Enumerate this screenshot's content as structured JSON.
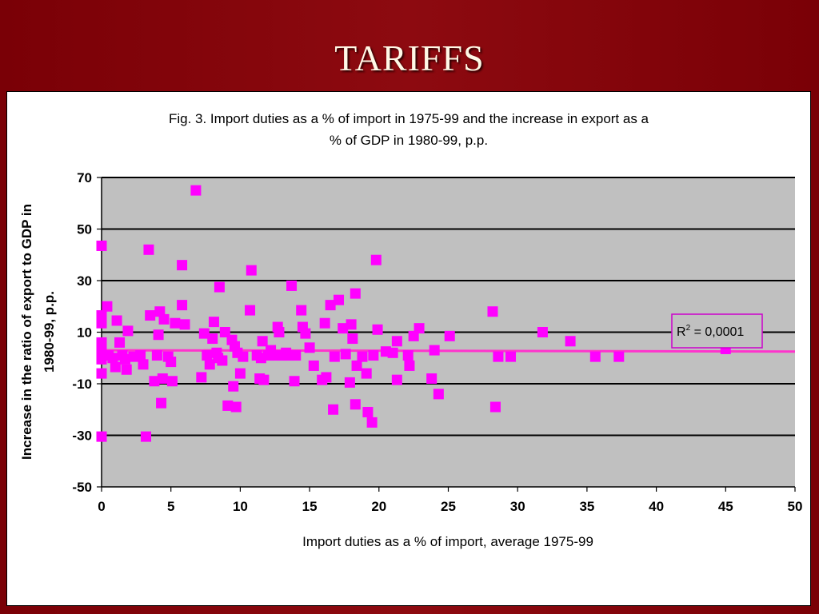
{
  "slide": {
    "title": "TARIFFS"
  },
  "chart_data": {
    "type": "scatter",
    "title_lines": [
      "Fig. 3. Import duties as a % of import in 1975-99 and the increase in export as a",
      "% of GDP in 1980-99, p.p."
    ],
    "xlabel": "Import duties as a  % of import, average 1975-99",
    "ylabel_lines": [
      "Increase in the ratio of export to GDP in",
      "1980-99, p.p."
    ],
    "xlim": [
      0,
      50
    ],
    "ylim": [
      -50,
      70
    ],
    "x_ticks": [
      0,
      5,
      10,
      15,
      20,
      25,
      30,
      35,
      40,
      45,
      50
    ],
    "y_ticks": [
      70,
      50,
      30,
      10,
      -10,
      -30,
      -50
    ],
    "grid": true,
    "plot_background": "#c0c0c0",
    "marker_color": "#ff00ff",
    "trendline": {
      "type": "linear",
      "x": [
        0,
        50
      ],
      "y": [
        3.0,
        2.5
      ],
      "color": "#ff33cc"
    },
    "annotation": {
      "text_main": "R",
      "text_sup": "2",
      "text_rest": " = 0,0001",
      "border_color": "#cc00cc"
    },
    "series": [
      {
        "points": [
          [
            0,
            43.5
          ],
          [
            0,
            16.5
          ],
          [
            0,
            13.5
          ],
          [
            0,
            6
          ],
          [
            0,
            3
          ],
          [
            0,
            1.5
          ],
          [
            0,
            -0.5
          ],
          [
            0,
            -6
          ],
          [
            0,
            -30.5
          ],
          [
            0.4,
            20
          ],
          [
            0.5,
            1
          ],
          [
            0.8,
            0
          ],
          [
            1,
            -3.5
          ],
          [
            1.1,
            14.5
          ],
          [
            1.3,
            6
          ],
          [
            1.5,
            1
          ],
          [
            1.7,
            -0.5
          ],
          [
            1.8,
            -4.5
          ],
          [
            1.9,
            10.5
          ],
          [
            2.3,
            0.5
          ],
          [
            2.8,
            1
          ],
          [
            3,
            -2.5
          ],
          [
            3.2,
            -30.5
          ],
          [
            3.4,
            42
          ],
          [
            3.5,
            16.5
          ],
          [
            3.8,
            -9
          ],
          [
            4,
            1
          ],
          [
            4.1,
            9
          ],
          [
            4.2,
            18
          ],
          [
            4.3,
            -17.5
          ],
          [
            4.4,
            -8
          ],
          [
            4.5,
            15
          ],
          [
            4.8,
            0.5
          ],
          [
            5,
            -1.5
          ],
          [
            5.1,
            -9
          ],
          [
            5.3,
            13.5
          ],
          [
            5.8,
            20.5
          ],
          [
            5.8,
            36
          ],
          [
            6,
            13
          ],
          [
            6.8,
            65
          ],
          [
            7.2,
            -7.5
          ],
          [
            7.4,
            9.5
          ],
          [
            7.6,
            1
          ],
          [
            7.8,
            -2.5
          ],
          [
            8,
            7.5
          ],
          [
            8.1,
            14
          ],
          [
            8.3,
            2
          ],
          [
            8.4,
            0
          ],
          [
            8.5,
            27.5
          ],
          [
            8.7,
            -1
          ],
          [
            8.9,
            10
          ],
          [
            9.1,
            -18.5
          ],
          [
            9.4,
            7
          ],
          [
            9.5,
            -11
          ],
          [
            9.6,
            4.5
          ],
          [
            9.7,
            -19
          ],
          [
            9.8,
            2
          ],
          [
            10,
            -6
          ],
          [
            10.2,
            0.5
          ],
          [
            10.7,
            18.5
          ],
          [
            10.8,
            34
          ],
          [
            11.2,
            1
          ],
          [
            11.4,
            -8
          ],
          [
            11.5,
            0
          ],
          [
            11.6,
            6.5
          ],
          [
            11.7,
            -8.5
          ],
          [
            12,
            1
          ],
          [
            12.2,
            3
          ],
          [
            12.5,
            1
          ],
          [
            12.7,
            12
          ],
          [
            12.8,
            10
          ],
          [
            13,
            1
          ],
          [
            13.3,
            2
          ],
          [
            13.5,
            1
          ],
          [
            13.7,
            28
          ],
          [
            13.9,
            -9
          ],
          [
            14,
            1
          ],
          [
            14.4,
            18.5
          ],
          [
            14.5,
            12
          ],
          [
            14.7,
            9.5
          ],
          [
            15,
            4
          ],
          [
            15.3,
            -3
          ],
          [
            15.9,
            -8.5
          ],
          [
            16.1,
            13.5
          ],
          [
            16.2,
            -7.5
          ],
          [
            16.5,
            20.5
          ],
          [
            16.7,
            -20
          ],
          [
            16.8,
            0.5
          ],
          [
            17.1,
            22.5
          ],
          [
            17.4,
            11.5
          ],
          [
            17.6,
            1.5
          ],
          [
            17.9,
            -9.5
          ],
          [
            18,
            13
          ],
          [
            18.1,
            7.5
          ],
          [
            18.3,
            25
          ],
          [
            18.3,
            -18
          ],
          [
            18.4,
            -3
          ],
          [
            18.8,
            0.5
          ],
          [
            19.1,
            -6
          ],
          [
            19.2,
            -21
          ],
          [
            19.5,
            -25
          ],
          [
            19.6,
            1
          ],
          [
            19.8,
            38
          ],
          [
            19.9,
            11
          ],
          [
            20.5,
            2.5
          ],
          [
            21,
            2
          ],
          [
            21.3,
            6.5
          ],
          [
            21.3,
            -8.5
          ],
          [
            22.1,
            1
          ],
          [
            22.2,
            -3
          ],
          [
            22.5,
            8.5
          ],
          [
            22.9,
            11.5
          ],
          [
            23.8,
            -8
          ],
          [
            24,
            3
          ],
          [
            24.3,
            -14
          ],
          [
            25.1,
            8.5
          ],
          [
            28.2,
            18
          ],
          [
            28.4,
            -19
          ],
          [
            28.6,
            0.5
          ],
          [
            29.5,
            0.5
          ],
          [
            31.8,
            10
          ],
          [
            33.8,
            6.5
          ],
          [
            35.6,
            0.5
          ],
          [
            37.3,
            0.5
          ],
          [
            45,
            3.5
          ]
        ]
      }
    ]
  }
}
